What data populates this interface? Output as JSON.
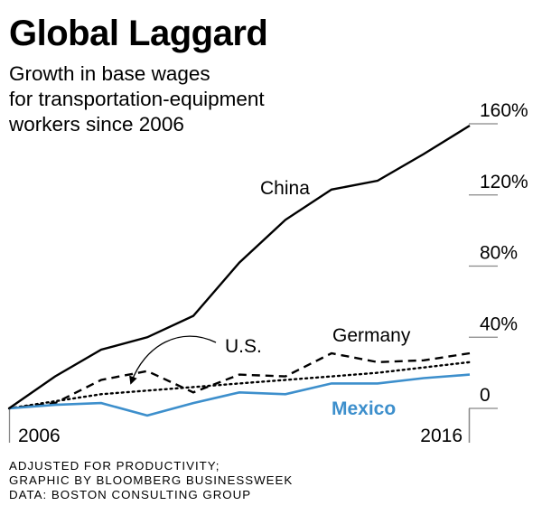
{
  "title": "Global Laggard",
  "subtitle_lines": [
    "Growth in base wages",
    "for transportation-equipment",
    "workers since 2006"
  ],
  "footnotes": [
    "ADJUSTED FOR PRODUCTIVITY;",
    "GRAPHIC BY BLOOMBERG BUSINESSWEEK",
    "DATA: BOSTON CONSULTING GROUP"
  ],
  "chart_data": {
    "type": "line",
    "x": [
      2006,
      2007,
      2008,
      2009,
      2010,
      2011,
      2012,
      2013,
      2014,
      2015,
      2016
    ],
    "x_ticks": [
      {
        "value": 2006,
        "label": "2006"
      },
      {
        "value": 2016,
        "label": "2016"
      }
    ],
    "y_ticks": [
      {
        "value": 0,
        "label": "0"
      },
      {
        "value": 40,
        "label": "40%"
      },
      {
        "value": 80,
        "label": "80%"
      },
      {
        "value": 120,
        "label": "120%"
      },
      {
        "value": 160,
        "label": "160%"
      }
    ],
    "xlim": [
      2006,
      2016
    ],
    "ylim": [
      0,
      160
    ],
    "grid": false,
    "xlabel": "",
    "ylabel": "",
    "series": [
      {
        "name": "China",
        "style": "solid",
        "color": "#000000",
        "values": [
          0,
          18,
          33,
          40,
          52,
          82,
          106,
          123,
          128,
          143,
          159
        ]
      },
      {
        "name": "Germany",
        "style": "dashed",
        "color": "#000000",
        "values": [
          0,
          3,
          16,
          21,
          9,
          19,
          18,
          31,
          26,
          27,
          31
        ]
      },
      {
        "name": "U.S.",
        "style": "dotted",
        "color": "#000000",
        "values": [
          0,
          4,
          8,
          10,
          12,
          14,
          16,
          18,
          20,
          23,
          26
        ]
      },
      {
        "name": "Mexico",
        "style": "solid",
        "color": "#3d8fcc",
        "values": [
          0,
          2,
          3,
          -4,
          3,
          9,
          8,
          14,
          14,
          17,
          19
        ]
      }
    ]
  }
}
